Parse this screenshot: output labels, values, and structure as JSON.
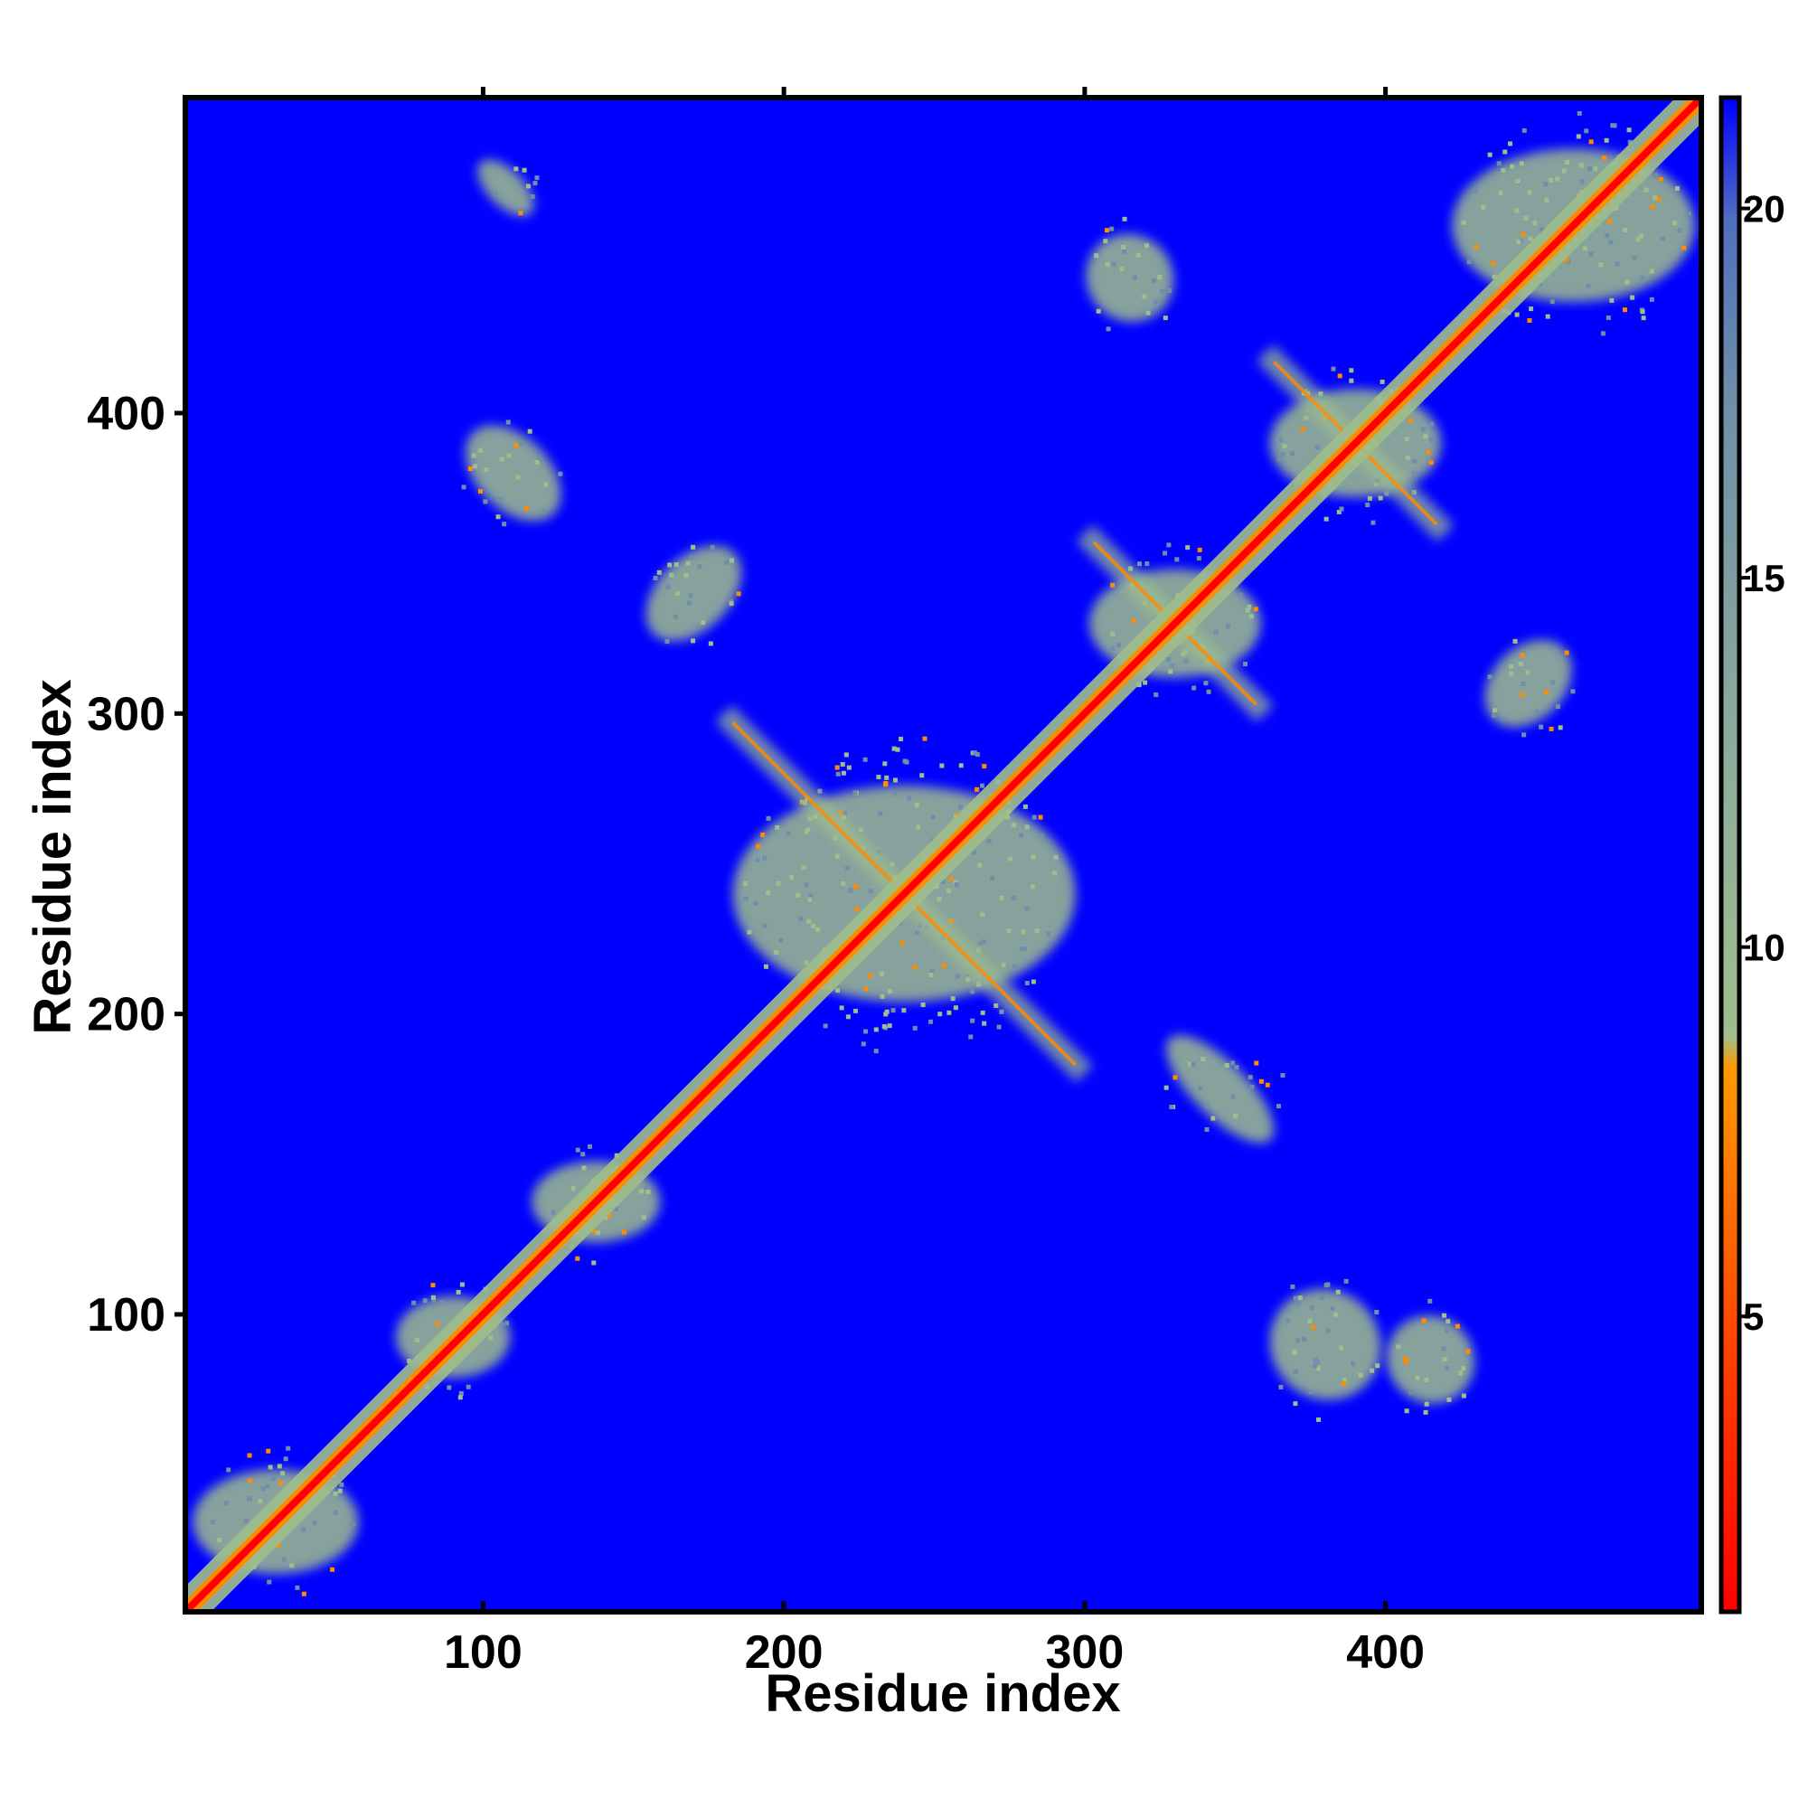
{
  "chart_data": {
    "type": "heatmap",
    "title": "",
    "xlabel": "Residue index",
    "ylabel": "Residue index",
    "xlim": [
      1,
      505
    ],
    "ylim": [
      1,
      505
    ],
    "x_ticks": [
      100,
      200,
      300,
      400
    ],
    "y_ticks": [
      100,
      200,
      300,
      400
    ],
    "colorbar": {
      "range": [
        1,
        21.5
      ],
      "ticks": [
        5,
        10,
        15,
        20
      ],
      "position": "right",
      "colors": {
        "low": "#ff0000",
        "mid_low": "#ff8c00",
        "mid": "#9fbe8c",
        "mid_high": "#6f8fa8",
        "high": "#0000ff"
      },
      "background_value_color": "#0000ff"
    },
    "features": {
      "main_diagonal": {
        "from": [
          1,
          1
        ],
        "to": [
          505,
          505
        ],
        "value": 3.8
      },
      "contact_regions": [
        {
          "x": [
            2,
            60
          ],
          "y": [
            2,
            60
          ],
          "kind": "diagonal-block"
        },
        {
          "x": [
            70,
            110
          ],
          "y": [
            70,
            115
          ],
          "kind": "diagonal-block"
        },
        {
          "x": [
            115,
            160
          ],
          "y": [
            115,
            160
          ],
          "kind": "diagonal-block"
        },
        {
          "x": [
            180,
            300
          ],
          "y": [
            180,
            300
          ],
          "kind": "loop-pattern"
        },
        {
          "x": [
            300,
            360
          ],
          "y": [
            300,
            360
          ],
          "kind": "cross"
        },
        {
          "x": [
            360,
            420
          ],
          "y": [
            360,
            420
          ],
          "kind": "cross"
        },
        {
          "x": [
            420,
            505
          ],
          "y": [
            420,
            505
          ],
          "kind": "diagonal-block"
        },
        {
          "x": [
            90,
            130
          ],
          "y": [
            360,
            400
          ],
          "kind": "strand-pair"
        },
        {
          "x": [
            150,
            190
          ],
          "y": [
            320,
            360
          ],
          "kind": "strand-pair"
        },
        {
          "x": [
            95,
            120
          ],
          "y": [
            465,
            485
          ],
          "kind": "strand-pair"
        },
        {
          "x": [
            300,
            330
          ],
          "y": [
            420,
            470
          ],
          "kind": "strand-pair"
        },
        {
          "x": [
            360,
            400
          ],
          "y": [
            60,
            120
          ],
          "kind": "strand-pair"
        },
        {
          "x": [
            400,
            430
          ],
          "y": [
            60,
            110
          ],
          "kind": "strand-pair"
        },
        {
          "x": [
            320,
            370
          ],
          "y": [
            160,
            190
          ],
          "kind": "strand-pair"
        },
        {
          "x": [
            430,
            465
          ],
          "y": [
            290,
            330
          ],
          "kind": "strand-pair"
        }
      ]
    }
  }
}
